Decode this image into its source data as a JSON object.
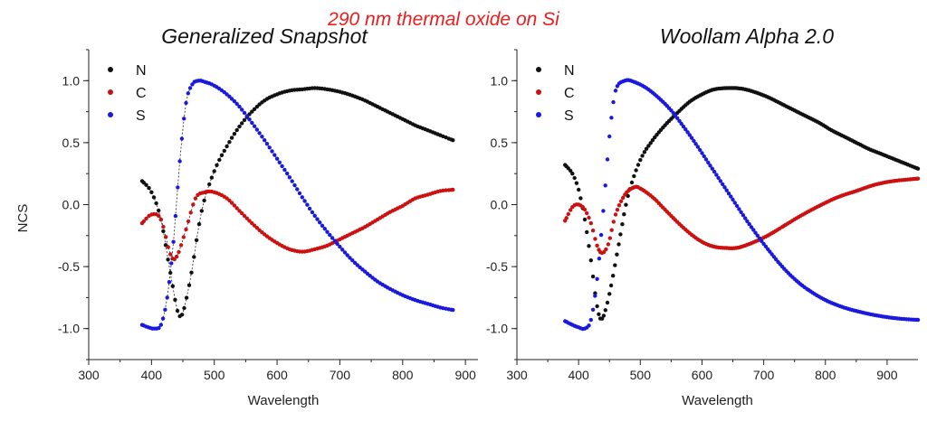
{
  "figure_title": "290 nm thermal oxide on Si",
  "colors": {
    "title": "#ee1c1c",
    "N": "#111111",
    "C": "#cc1111",
    "S": "#1a1adf",
    "fit": "#222222"
  },
  "chart_data": [
    {
      "type": "scatter",
      "title": "Generalized Snapshot",
      "xlabel": "Wavelength",
      "ylabel": "NCS",
      "xlim": [
        300,
        920
      ],
      "ylim": [
        -1.25,
        1.25
      ],
      "xticks": [
        300,
        400,
        500,
        600,
        700,
        800,
        900
      ],
      "yticks": [
        -1.0,
        -0.5,
        0.0,
        0.5,
        1.0
      ],
      "grid": false,
      "legend": "top-left",
      "series": [
        {
          "name": "N",
          "x": [
            385,
            400,
            415,
            430,
            445,
            460,
            480,
            500,
            520,
            540,
            560,
            580,
            600,
            620,
            640,
            660,
            680,
            700,
            720,
            740,
            760,
            780,
            800,
            820,
            840,
            860,
            880
          ],
          "y": [
            0.19,
            0.1,
            -0.12,
            -0.55,
            -0.9,
            -0.65,
            -0.05,
            0.27,
            0.47,
            0.63,
            0.75,
            0.84,
            0.89,
            0.92,
            0.93,
            0.94,
            0.93,
            0.91,
            0.88,
            0.84,
            0.79,
            0.74,
            0.69,
            0.64,
            0.6,
            0.56,
            0.52
          ]
        },
        {
          "name": "C",
          "x": [
            385,
            400,
            415,
            430,
            440,
            455,
            470,
            485,
            500,
            520,
            540,
            560,
            580,
            600,
            620,
            640,
            660,
            680,
            700,
            720,
            740,
            760,
            780,
            800,
            820,
            840,
            860,
            880
          ],
          "y": [
            -0.15,
            -0.08,
            -0.12,
            -0.4,
            -0.42,
            -0.2,
            0.05,
            0.1,
            0.1,
            0.05,
            -0.05,
            -0.15,
            -0.24,
            -0.31,
            -0.36,
            -0.38,
            -0.36,
            -0.33,
            -0.28,
            -0.23,
            -0.18,
            -0.12,
            -0.06,
            -0.01,
            0.05,
            0.08,
            0.11,
            0.12
          ]
        },
        {
          "name": "S",
          "x": [
            385,
            395,
            405,
            415,
            425,
            435,
            445,
            455,
            465,
            475,
            485,
            500,
            520,
            540,
            560,
            580,
            600,
            620,
            640,
            660,
            680,
            700,
            720,
            740,
            760,
            780,
            800,
            820,
            840,
            860,
            880
          ],
          "y": [
            -0.97,
            -0.99,
            -1.0,
            -0.97,
            -0.75,
            -0.3,
            0.35,
            0.82,
            0.97,
            1.0,
            0.99,
            0.96,
            0.89,
            0.79,
            0.66,
            0.52,
            0.37,
            0.22,
            0.06,
            -0.09,
            -0.22,
            -0.34,
            -0.45,
            -0.54,
            -0.62,
            -0.68,
            -0.73,
            -0.77,
            -0.8,
            -0.83,
            -0.85
          ]
        }
      ]
    },
    {
      "type": "scatter",
      "title": "Woollam Alpha 2.0",
      "xlabel": "Wavelength",
      "ylabel": "",
      "xlim": [
        300,
        950
      ],
      "ylim": [
        -1.25,
        1.25
      ],
      "xticks": [
        300,
        400,
        500,
        600,
        700,
        800,
        900
      ],
      "yticks": [
        -1.0,
        -0.5,
        0.0,
        0.5,
        1.0
      ],
      "grid": false,
      "legend": "top-left",
      "series": [
        {
          "name": "N",
          "x": [
            378,
            390,
            400,
            410,
            420,
            430,
            438,
            450,
            465,
            480,
            500,
            520,
            540,
            560,
            580,
            600,
            620,
            640,
            655,
            670,
            690,
            710,
            730,
            750,
            770,
            790,
            810,
            830,
            850,
            870,
            890,
            910,
            930,
            950
          ],
          "y": [
            0.32,
            0.25,
            0.12,
            -0.12,
            -0.45,
            -0.82,
            -0.92,
            -0.72,
            -0.32,
            0.07,
            0.36,
            0.52,
            0.64,
            0.74,
            0.83,
            0.89,
            0.93,
            0.94,
            0.94,
            0.93,
            0.9,
            0.86,
            0.81,
            0.76,
            0.71,
            0.66,
            0.6,
            0.55,
            0.5,
            0.45,
            0.41,
            0.37,
            0.33,
            0.29
          ]
        },
        {
          "name": "C",
          "x": [
            378,
            390,
            400,
            410,
            420,
            430,
            438,
            448,
            460,
            475,
            490,
            500,
            520,
            540,
            560,
            580,
            600,
            620,
            640,
            655,
            670,
            690,
            710,
            730,
            760,
            790,
            820,
            850,
            880,
            910,
            950
          ],
          "y": [
            -0.13,
            -0.02,
            0.0,
            -0.04,
            -0.15,
            -0.33,
            -0.39,
            -0.32,
            -0.08,
            0.08,
            0.14,
            0.13,
            0.06,
            -0.04,
            -0.14,
            -0.23,
            -0.3,
            -0.34,
            -0.35,
            -0.35,
            -0.33,
            -0.29,
            -0.24,
            -0.18,
            -0.09,
            -0.01,
            0.06,
            0.11,
            0.16,
            0.19,
            0.21
          ]
        },
        {
          "name": "S",
          "x": [
            378,
            390,
            400,
            410,
            420,
            430,
            440,
            450,
            460,
            475,
            490,
            510,
            530,
            550,
            570,
            590,
            610,
            630,
            650,
            670,
            690,
            710,
            730,
            750,
            770,
            800,
            830,
            860,
            890,
            920,
            950
          ],
          "y": [
            -0.94,
            -0.97,
            -0.99,
            -1.0,
            -0.93,
            -0.6,
            -0.05,
            0.55,
            0.92,
            1.0,
            0.99,
            0.94,
            0.86,
            0.76,
            0.63,
            0.49,
            0.34,
            0.19,
            0.04,
            -0.11,
            -0.25,
            -0.38,
            -0.5,
            -0.6,
            -0.68,
            -0.77,
            -0.83,
            -0.87,
            -0.9,
            -0.92,
            -0.93
          ]
        }
      ]
    }
  ]
}
